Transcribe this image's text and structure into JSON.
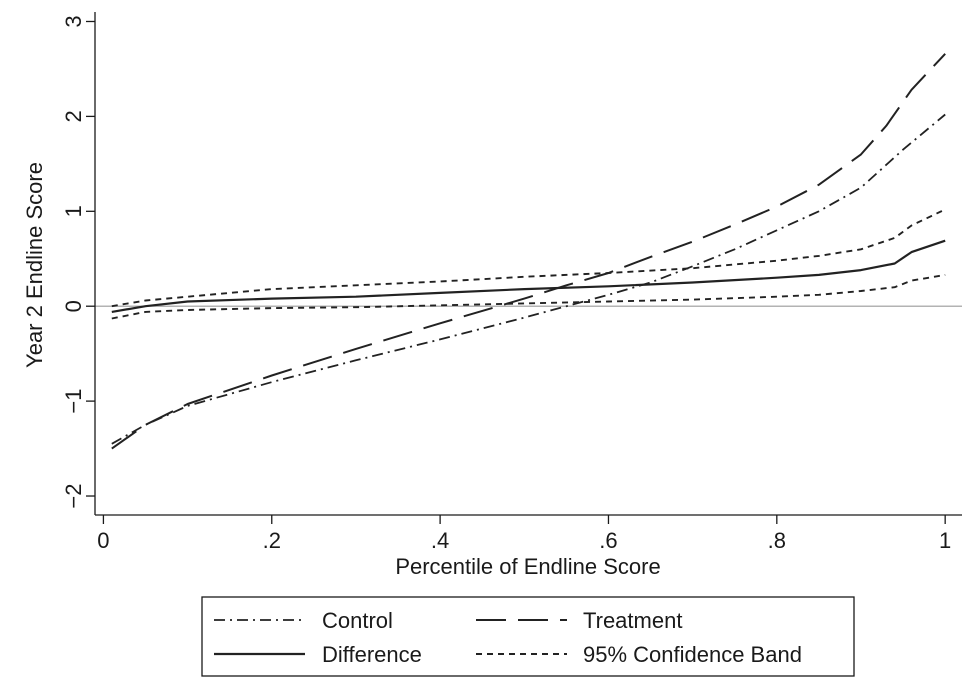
{
  "chart_data": {
    "type": "line",
    "title": "",
    "xlabel": "Percentile of Endline Score",
    "ylabel": "Year 2 Endline Score",
    "xlim": [
      -0.01,
      1.02
    ],
    "ylim": [
      -2.2,
      3.1
    ],
    "xticks": [
      0,
      0.2,
      0.4,
      0.6,
      0.8,
      1
    ],
    "xtick_labels": [
      "0",
      ".2",
      ".4",
      ".6",
      ".8",
      "1"
    ],
    "yticks": [
      -2,
      -1,
      0,
      1,
      2,
      3
    ],
    "ytick_labels": [
      "−2",
      "−1",
      "0",
      "1",
      "2",
      "3"
    ],
    "reference_line_y": 0,
    "grid": false,
    "legend_position": "bottom",
    "series": [
      {
        "name": "Control",
        "style": "dash-dot",
        "color": "#222222",
        "x": [
          0.01,
          0.05,
          0.1,
          0.2,
          0.3,
          0.4,
          0.5,
          0.55,
          0.6,
          0.65,
          0.7,
          0.75,
          0.8,
          0.85,
          0.9,
          0.95,
          1.0
        ],
        "y": [
          -1.45,
          -1.25,
          -1.05,
          -0.8,
          -0.57,
          -0.35,
          -0.12,
          0.0,
          0.12,
          0.25,
          0.42,
          0.6,
          0.8,
          1.0,
          1.25,
          1.65,
          2.02
        ]
      },
      {
        "name": "Treatment",
        "style": "long-dash",
        "color": "#222222",
        "x": [
          0.01,
          0.05,
          0.1,
          0.2,
          0.3,
          0.4,
          0.5,
          0.55,
          0.6,
          0.65,
          0.7,
          0.75,
          0.8,
          0.85,
          0.9,
          0.93,
          0.96,
          1.0
        ],
        "y": [
          -1.5,
          -1.25,
          -1.03,
          -0.73,
          -0.45,
          -0.18,
          0.08,
          0.22,
          0.35,
          0.52,
          0.68,
          0.86,
          1.05,
          1.28,
          1.6,
          1.9,
          2.28,
          2.66
        ]
      },
      {
        "name": "Difference",
        "style": "solid",
        "color": "#222222",
        "x": [
          0.01,
          0.05,
          0.1,
          0.2,
          0.3,
          0.4,
          0.5,
          0.6,
          0.7,
          0.8,
          0.85,
          0.9,
          0.94,
          0.96,
          1.0
        ],
        "y": [
          -0.06,
          0.0,
          0.05,
          0.08,
          0.1,
          0.14,
          0.18,
          0.21,
          0.25,
          0.3,
          0.33,
          0.38,
          0.45,
          0.57,
          0.69
        ]
      },
      {
        "name": "95% Confidence Band",
        "style": "short-dash",
        "color": "#222222",
        "x": [
          0.01,
          0.05,
          0.1,
          0.2,
          0.3,
          0.4,
          0.5,
          0.6,
          0.7,
          0.8,
          0.85,
          0.9,
          0.94,
          0.96,
          1.0
        ],
        "y": [
          0.0,
          0.06,
          0.1,
          0.18,
          0.22,
          0.26,
          0.31,
          0.35,
          0.4,
          0.48,
          0.53,
          0.6,
          0.72,
          0.85,
          1.02
        ]
      },
      {
        "name": "95% Confidence Band (lower)",
        "style": "short-dash",
        "color": "#222222",
        "show_in_legend": false,
        "x": [
          0.01,
          0.05,
          0.1,
          0.2,
          0.3,
          0.4,
          0.5,
          0.6,
          0.7,
          0.8,
          0.85,
          0.9,
          0.94,
          0.96,
          1.0
        ],
        "y": [
          -0.13,
          -0.06,
          -0.04,
          -0.02,
          -0.01,
          0.01,
          0.03,
          0.05,
          0.07,
          0.1,
          0.12,
          0.16,
          0.2,
          0.27,
          0.33
        ]
      }
    ]
  }
}
